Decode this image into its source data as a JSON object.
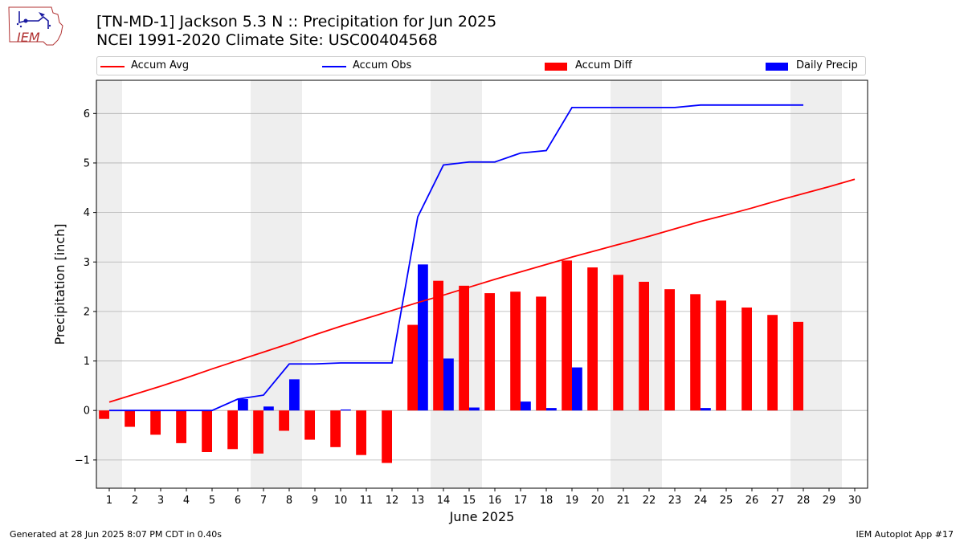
{
  "header": {
    "logo_text": "IEM",
    "title_line1": "[TN-MD-1] Jackson 5.3 N :: Precipitation for Jun 2025",
    "title_line2": "NCEI 1991-2020 Climate Site: USC00404568"
  },
  "footer": {
    "generated": "Generated at 28 Jun 2025 8:07 PM CDT in 0.40s",
    "app": "IEM Autoplot App #17"
  },
  "colors": {
    "accum_avg": "#ff0000",
    "accum_obs": "#0000ff",
    "accum_diff": "#ff0000",
    "daily_precip": "#0000ff",
    "weekend_shade": "#eeeeee",
    "grid": "#b0b0b0"
  },
  "chart_data": {
    "type": "bar",
    "title": "[TN-MD-1] Jackson 5.3 N :: Precipitation for Jun 2025",
    "subtitle": "NCEI 1991-2020 Climate Site: USC00404568",
    "xlabel": "June 2025",
    "ylabel": "Precipitation [inch]",
    "xlim": [
      0.5,
      30.5
    ],
    "ylim": [
      -1.57,
      6.67
    ],
    "x": [
      1,
      2,
      3,
      4,
      5,
      6,
      7,
      8,
      9,
      10,
      11,
      12,
      13,
      14,
      15,
      16,
      17,
      18,
      19,
      20,
      21,
      22,
      23,
      24,
      25,
      26,
      27,
      28,
      29,
      30
    ],
    "x_tick_labels": [
      "1",
      "2",
      "3",
      "4",
      "5",
      "6",
      "7",
      "8",
      "9",
      "10",
      "11",
      "12",
      "13",
      "14",
      "15",
      "16",
      "17",
      "18",
      "19",
      "20",
      "21",
      "22",
      "23",
      "24",
      "25",
      "26",
      "27",
      "28",
      "29",
      "30"
    ],
    "y_ticks": [
      -1,
      0,
      1,
      2,
      3,
      4,
      5,
      6
    ],
    "y_tick_labels": [
      "−1",
      "0",
      "1",
      "2",
      "3",
      "4",
      "5",
      "6"
    ],
    "grid": "horizontal",
    "legend_position": "top",
    "shaded_days": [
      [
        0.5,
        1.5
      ],
      [
        6.5,
        8.5
      ],
      [
        13.5,
        15.5
      ],
      [
        20.5,
        22.5
      ],
      [
        27.5,
        29.5
      ]
    ],
    "series": [
      {
        "name": "Accum Avg",
        "kind": "line",
        "x": [
          1,
          2,
          3,
          4,
          5,
          6,
          7,
          8,
          9,
          10,
          11,
          12,
          13,
          14,
          15,
          16,
          17,
          18,
          19,
          20,
          21,
          22,
          23,
          24,
          25,
          26,
          27,
          28,
          29,
          30
        ],
        "values": [
          0.17,
          0.33,
          0.49,
          0.66,
          0.84,
          1.01,
          1.18,
          1.35,
          1.53,
          1.7,
          1.86,
          2.02,
          2.18,
          2.33,
          2.49,
          2.65,
          2.8,
          2.95,
          3.1,
          3.24,
          3.38,
          3.52,
          3.67,
          3.82,
          3.95,
          4.09,
          4.24,
          4.38,
          4.52,
          4.67
        ]
      },
      {
        "name": "Accum Obs",
        "kind": "line",
        "x": [
          1,
          2,
          3,
          4,
          5,
          6,
          7,
          8,
          9,
          10,
          11,
          12,
          13,
          14,
          15,
          16,
          17,
          18,
          19,
          20,
          21,
          22,
          23,
          24,
          25,
          26,
          27,
          28
        ],
        "values": [
          0.0,
          0.0,
          0.0,
          0.0,
          0.0,
          0.23,
          0.31,
          0.94,
          0.94,
          0.96,
          0.96,
          0.96,
          3.91,
          4.96,
          5.02,
          5.02,
          5.2,
          5.25,
          6.12,
          6.12,
          6.12,
          6.12,
          6.12,
          6.17,
          6.17,
          6.17,
          6.17,
          6.17
        ]
      },
      {
        "name": "Accum Diff",
        "kind": "bar",
        "x": [
          1,
          2,
          3,
          4,
          5,
          6,
          7,
          8,
          9,
          10,
          11,
          12,
          13,
          14,
          15,
          16,
          17,
          18,
          19,
          20,
          21,
          22,
          23,
          24,
          25,
          26,
          27,
          28
        ],
        "values": [
          -0.17,
          -0.33,
          -0.49,
          -0.66,
          -0.84,
          -0.78,
          -0.87,
          -0.41,
          -0.59,
          -0.74,
          -0.9,
          -1.06,
          1.73,
          2.62,
          2.52,
          2.37,
          2.4,
          2.3,
          3.03,
          2.89,
          2.74,
          2.6,
          2.45,
          2.35,
          2.22,
          2.08,
          1.93,
          1.79
        ]
      },
      {
        "name": "Daily Precip",
        "kind": "bar",
        "x": [
          1,
          2,
          3,
          4,
          5,
          6,
          7,
          8,
          9,
          10,
          11,
          12,
          13,
          14,
          15,
          16,
          17,
          18,
          19,
          20,
          21,
          22,
          23,
          24,
          25,
          26,
          27,
          28
        ],
        "values": [
          0,
          0,
          0,
          0,
          0,
          0.23,
          0.08,
          0.63,
          0,
          0.02,
          0,
          0,
          2.95,
          1.05,
          0.06,
          0,
          0.18,
          0.05,
          0.87,
          0,
          0,
          0,
          0,
          0.05,
          0,
          0,
          0,
          0
        ]
      }
    ]
  }
}
